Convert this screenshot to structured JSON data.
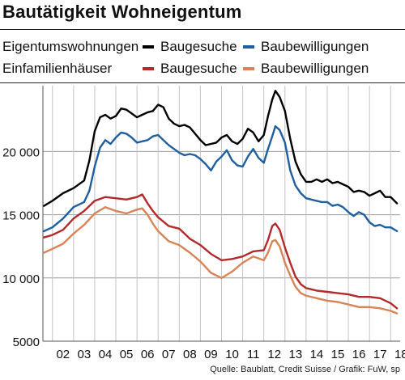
{
  "title": "Bautätigkeit Wohneigentum",
  "source": "Quelle: Baublatt, Credit Suisse / Grafik: FuW, sp",
  "legend": {
    "groups": [
      {
        "label": "Eigentumswohnungen",
        "items": [
          {
            "label": "Baugesuche",
            "color": "#000000"
          },
          {
            "label": "Baubewilligungen",
            "color": "#1e5fa0"
          }
        ]
      },
      {
        "label": "Einfamilienhäuser",
        "items": [
          {
            "label": "Baugesuche",
            "color": "#b32a2a"
          },
          {
            "label": "Baubewilligungen",
            "color": "#d98356"
          }
        ]
      }
    ]
  },
  "chart_data": {
    "type": "line",
    "title": "Bautätigkeit Wohneigentum",
    "xlabel": "",
    "ylabel": "",
    "x_ticks": [
      "02",
      "03",
      "04",
      "05",
      "06",
      "07",
      "08",
      "09",
      "10",
      "11",
      "12",
      "13",
      "14",
      "15",
      "16",
      "17",
      "18"
    ],
    "y_ticks": [
      5000,
      10000,
      15000,
      20000
    ],
    "y_tick_labels": [
      "5000",
      "10 000",
      "15 000",
      "20 000"
    ],
    "xlim": [
      2001.55,
      2018.45
    ],
    "ylim": [
      5000,
      25200
    ],
    "grid": true,
    "legend_position": "top",
    "series": [
      {
        "name": "Eigentumswohnungen Baugesuche",
        "color": "#000000",
        "x": [
          2001.6,
          2002.0,
          2002.5,
          2003.0,
          2003.5,
          2003.75,
          2004.0,
          2004.25,
          2004.5,
          2004.75,
          2005.0,
          2005.25,
          2005.5,
          2005.75,
          2006.0,
          2006.25,
          2006.5,
          2006.75,
          2007.0,
          2007.25,
          2007.5,
          2007.75,
          2008.0,
          2008.25,
          2008.5,
          2008.75,
          2009.0,
          2009.25,
          2009.5,
          2009.75,
          2010.0,
          2010.25,
          2010.5,
          2010.75,
          2011.0,
          2011.25,
          2011.5,
          2011.75,
          2012.0,
          2012.2,
          2012.4,
          2012.55,
          2012.75,
          2013.0,
          2013.25,
          2013.5,
          2013.75,
          2014.0,
          2014.25,
          2014.5,
          2014.75,
          2015.0,
          2015.25,
          2015.5,
          2015.75,
          2016.0,
          2016.25,
          2016.5,
          2016.75,
          2017.0,
          2017.25,
          2017.5,
          2017.75,
          2018.0,
          2018.3
        ],
        "y": [
          15700,
          16100,
          16700,
          17100,
          17700,
          19300,
          21600,
          22700,
          22900,
          22600,
          22800,
          23400,
          23300,
          23000,
          22700,
          22900,
          23100,
          23200,
          23700,
          23500,
          22600,
          22200,
          22000,
          22100,
          21900,
          21400,
          20900,
          20500,
          20600,
          20700,
          21100,
          21300,
          20800,
          20600,
          21000,
          21800,
          21500,
          20800,
          21300,
          22800,
          24100,
          24800,
          24300,
          23200,
          21000,
          19200,
          18200,
          17600,
          17600,
          17800,
          17600,
          17800,
          17500,
          17600,
          17400,
          17200,
          16800,
          16900,
          16800,
          16500,
          16700,
          16900,
          16400,
          16400,
          15900
        ]
      },
      {
        "name": "Eigentumswohnungen Baubewilligungen",
        "color": "#1e5fa0",
        "x": [
          2001.6,
          2002.0,
          2002.5,
          2003.0,
          2003.5,
          2003.75,
          2004.0,
          2004.25,
          2004.5,
          2004.75,
          2005.0,
          2005.25,
          2005.5,
          2005.75,
          2006.0,
          2006.25,
          2006.5,
          2006.75,
          2007.0,
          2007.25,
          2007.5,
          2007.75,
          2008.0,
          2008.25,
          2008.5,
          2008.75,
          2009.0,
          2009.25,
          2009.5,
          2009.75,
          2010.0,
          2010.25,
          2010.5,
          2010.75,
          2011.0,
          2011.25,
          2011.5,
          2011.75,
          2012.0,
          2012.2,
          2012.4,
          2012.55,
          2012.75,
          2013.0,
          2013.25,
          2013.5,
          2013.75,
          2014.0,
          2014.25,
          2014.5,
          2014.75,
          2015.0,
          2015.25,
          2015.5,
          2015.75,
          2016.0,
          2016.25,
          2016.5,
          2016.75,
          2017.0,
          2017.25,
          2017.5,
          2017.75,
          2018.0,
          2018.3
        ],
        "y": [
          13700,
          14000,
          14700,
          15600,
          16000,
          16900,
          18800,
          20300,
          20900,
          20600,
          21100,
          21500,
          21400,
          21100,
          20700,
          20800,
          20900,
          21200,
          21300,
          20900,
          20500,
          20200,
          19900,
          19700,
          19800,
          19700,
          19400,
          19000,
          18500,
          19200,
          19600,
          20100,
          19300,
          18900,
          18800,
          19600,
          20200,
          19500,
          19100,
          20200,
          21200,
          22000,
          21700,
          20700,
          18500,
          17300,
          16700,
          16300,
          16200,
          16100,
          16000,
          16000,
          15700,
          15800,
          15600,
          15200,
          14900,
          15200,
          15000,
          14400,
          14100,
          14200,
          14000,
          14000,
          13700
        ]
      },
      {
        "name": "Einfamilienhäuser Baugesuche",
        "color": "#b32a2a",
        "x": [
          2001.6,
          2002.0,
          2002.5,
          2003.0,
          2003.5,
          2004.0,
          2004.5,
          2005.0,
          2005.5,
          2006.0,
          2006.25,
          2006.5,
          2006.75,
          2007.0,
          2007.5,
          2008.0,
          2008.5,
          2009.0,
          2009.5,
          2010.0,
          2010.5,
          2011.0,
          2011.5,
          2012.0,
          2012.2,
          2012.4,
          2012.55,
          2012.75,
          2013.0,
          2013.25,
          2013.5,
          2013.75,
          2014.0,
          2014.5,
          2015.0,
          2015.5,
          2016.0,
          2016.5,
          2017.0,
          2017.5,
          2018.0,
          2018.3
        ],
        "y": [
          13200,
          13400,
          13800,
          14700,
          15300,
          16100,
          16400,
          16300,
          16200,
          16400,
          16600,
          15900,
          15300,
          14800,
          14100,
          13900,
          13100,
          12600,
          11900,
          11400,
          11500,
          11700,
          12100,
          12200,
          13000,
          14100,
          14300,
          13800,
          12400,
          11200,
          10100,
          9500,
          9200,
          9000,
          8900,
          8800,
          8700,
          8500,
          8500,
          8400,
          8000,
          7600
        ]
      },
      {
        "name": "Einfamilienhäuser Baubewilligungen",
        "color": "#d98356",
        "x": [
          2001.6,
          2002.0,
          2002.5,
          2003.0,
          2003.5,
          2004.0,
          2004.5,
          2005.0,
          2005.5,
          2006.0,
          2006.25,
          2006.5,
          2006.75,
          2007.0,
          2007.5,
          2008.0,
          2008.5,
          2009.0,
          2009.5,
          2010.0,
          2010.5,
          2011.0,
          2011.5,
          2012.0,
          2012.2,
          2012.4,
          2012.55,
          2012.75,
          2013.0,
          2013.25,
          2013.5,
          2013.75,
          2014.0,
          2014.5,
          2015.0,
          2015.5,
          2016.0,
          2016.5,
          2017.0,
          2017.5,
          2018.0,
          2018.3
        ],
        "y": [
          12000,
          12300,
          12700,
          13500,
          14200,
          15100,
          15600,
          15300,
          15100,
          15400,
          15500,
          15000,
          14300,
          13700,
          12900,
          12600,
          12000,
          11300,
          10400,
          10000,
          10500,
          11200,
          11700,
          11400,
          12000,
          12900,
          13000,
          12500,
          11200,
          10200,
          9300,
          8800,
          8600,
          8400,
          8200,
          8100,
          7900,
          7700,
          7700,
          7600,
          7400,
          7200
        ]
      }
    ]
  }
}
